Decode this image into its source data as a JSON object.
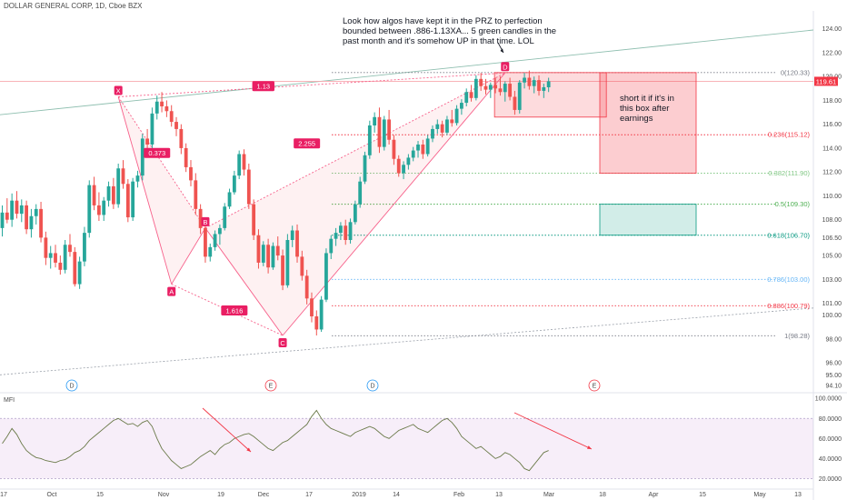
{
  "header": {
    "symbol": "DOLLAR GENERAL CORP, 1D, Cboe BZX"
  },
  "annotations": {
    "top_note": "Look how algos have kept it in the PRZ to perfection\nbounded between .886-1.13XA... 5 green candles in the\npast month and it's somehow UP in that time. LOL",
    "box_note": "short it if it's in\nthis box after\nearnings"
  },
  "price_tag": "119.61",
  "chart_data": {
    "type": "candlestick",
    "title": "DOLLAR GENERAL CORP, 1D, Cboe BZX",
    "ylim": [
      93.5,
      125.5
    ],
    "y_ticks": [
      "124.00",
      "122.00",
      "120.00",
      "118.00",
      "116.00",
      "114.00",
      "112.00",
      "110.00",
      "108.00",
      "106.50",
      "105.00",
      "103.00",
      "101.00",
      "100.00",
      "98.00",
      "96.00",
      "95.00",
      "94.10"
    ],
    "y_tick_values": [
      124,
      122,
      120,
      118,
      116,
      114,
      112,
      110,
      108,
      106.5,
      105,
      103,
      101,
      100,
      98,
      96,
      95,
      94.1
    ],
    "x_labels": [
      "17",
      "Oct",
      "15",
      "Nov",
      "19",
      "Dec",
      "17",
      "2019",
      "14",
      "Feb",
      "13",
      "Mar",
      "18",
      "Apr",
      "15",
      "May",
      "13"
    ],
    "candles": [
      {
        "o": 107.3,
        "h": 109.2,
        "l": 106.6,
        "c": 108.6
      },
      {
        "o": 108.6,
        "h": 109.8,
        "l": 107.7,
        "c": 108.0
      },
      {
        "o": 108.0,
        "h": 110.2,
        "l": 107.4,
        "c": 109.6
      },
      {
        "o": 109.6,
        "h": 110.4,
        "l": 108.1,
        "c": 108.5
      },
      {
        "o": 108.5,
        "h": 109.7,
        "l": 107.8,
        "c": 109.2
      },
      {
        "o": 109.2,
        "h": 109.6,
        "l": 106.8,
        "c": 107.2
      },
      {
        "o": 107.2,
        "h": 108.9,
        "l": 106.5,
        "c": 108.3
      },
      {
        "o": 108.3,
        "h": 109.3,
        "l": 107.6,
        "c": 108.9
      },
      {
        "o": 108.9,
        "h": 109.5,
        "l": 106.1,
        "c": 106.5
      },
      {
        "o": 106.5,
        "h": 107.0,
        "l": 104.2,
        "c": 104.8
      },
      {
        "o": 104.8,
        "h": 105.8,
        "l": 103.9,
        "c": 105.2
      },
      {
        "o": 105.2,
        "h": 105.9,
        "l": 104.0,
        "c": 104.4
      },
      {
        "o": 104.4,
        "h": 105.0,
        "l": 103.4,
        "c": 103.8
      },
      {
        "o": 103.8,
        "h": 106.3,
        "l": 103.5,
        "c": 105.9
      },
      {
        "o": 105.9,
        "h": 106.8,
        "l": 104.9,
        "c": 105.3
      },
      {
        "o": 105.3,
        "h": 105.7,
        "l": 102.4,
        "c": 102.6
      },
      {
        "o": 102.6,
        "h": 104.9,
        "l": 102.2,
        "c": 104.5
      },
      {
        "o": 104.5,
        "h": 107.4,
        "l": 104.1,
        "c": 106.9
      },
      {
        "o": 106.9,
        "h": 111.3,
        "l": 106.5,
        "c": 110.9
      },
      {
        "o": 110.9,
        "h": 111.6,
        "l": 108.8,
        "c": 109.2
      },
      {
        "o": 109.2,
        "h": 110.3,
        "l": 107.9,
        "c": 108.4
      },
      {
        "o": 108.4,
        "h": 109.9,
        "l": 107.9,
        "c": 109.6
      },
      {
        "o": 109.6,
        "h": 111.2,
        "l": 109.1,
        "c": 110.8
      },
      {
        "o": 110.8,
        "h": 111.5,
        "l": 108.9,
        "c": 109.3
      },
      {
        "o": 109.3,
        "h": 112.7,
        "l": 109.0,
        "c": 112.3
      },
      {
        "o": 112.3,
        "h": 113.0,
        "l": 110.6,
        "c": 111.0
      },
      {
        "o": 111.0,
        "h": 111.4,
        "l": 107.8,
        "c": 108.2
      },
      {
        "o": 108.2,
        "h": 111.5,
        "l": 107.9,
        "c": 111.2
      },
      {
        "o": 111.2,
        "h": 112.1,
        "l": 110.7,
        "c": 111.7
      },
      {
        "o": 111.7,
        "h": 115.2,
        "l": 111.3,
        "c": 114.8
      },
      {
        "o": 114.8,
        "h": 115.6,
        "l": 113.9,
        "c": 114.3
      },
      {
        "o": 114.3,
        "h": 117.4,
        "l": 114.0,
        "c": 116.9
      },
      {
        "o": 116.9,
        "h": 118.4,
        "l": 116.4,
        "c": 117.9
      },
      {
        "o": 117.9,
        "h": 118.7,
        "l": 117.0,
        "c": 117.5
      },
      {
        "o": 117.5,
        "h": 118.0,
        "l": 116.6,
        "c": 117.1
      },
      {
        "o": 117.1,
        "h": 117.6,
        "l": 115.8,
        "c": 116.2
      },
      {
        "o": 116.2,
        "h": 116.6,
        "l": 115.0,
        "c": 115.6
      },
      {
        "o": 115.6,
        "h": 116.0,
        "l": 113.5,
        "c": 114.0
      },
      {
        "o": 114.0,
        "h": 114.4,
        "l": 112.0,
        "c": 112.4
      },
      {
        "o": 112.4,
        "h": 113.0,
        "l": 110.8,
        "c": 111.3
      },
      {
        "o": 111.3,
        "h": 111.9,
        "l": 108.4,
        "c": 108.9
      },
      {
        "o": 108.9,
        "h": 109.3,
        "l": 106.8,
        "c": 107.3
      },
      {
        "o": 107.3,
        "h": 107.8,
        "l": 104.4,
        "c": 104.9
      },
      {
        "o": 104.9,
        "h": 106.0,
        "l": 104.5,
        "c": 105.7
      },
      {
        "o": 105.7,
        "h": 107.1,
        "l": 105.4,
        "c": 106.8
      },
      {
        "o": 106.8,
        "h": 107.6,
        "l": 105.9,
        "c": 107.3
      },
      {
        "o": 107.3,
        "h": 109.4,
        "l": 107.1,
        "c": 109.1
      },
      {
        "o": 109.1,
        "h": 110.6,
        "l": 108.9,
        "c": 110.3
      },
      {
        "o": 110.3,
        "h": 112.1,
        "l": 110.1,
        "c": 111.7
      },
      {
        "o": 111.7,
        "h": 113.8,
        "l": 111.4,
        "c": 113.5
      },
      {
        "o": 113.5,
        "h": 113.9,
        "l": 111.7,
        "c": 112.2
      },
      {
        "o": 112.2,
        "h": 112.7,
        "l": 108.9,
        "c": 109.3
      },
      {
        "o": 109.3,
        "h": 109.7,
        "l": 106.3,
        "c": 106.7
      },
      {
        "o": 106.7,
        "h": 107.2,
        "l": 103.9,
        "c": 104.4
      },
      {
        "o": 104.4,
        "h": 106.2,
        "l": 104.1,
        "c": 105.9
      },
      {
        "o": 105.9,
        "h": 106.4,
        "l": 103.5,
        "c": 104.0
      },
      {
        "o": 104.0,
        "h": 106.1,
        "l": 103.8,
        "c": 105.8
      },
      {
        "o": 105.8,
        "h": 106.6,
        "l": 104.6,
        "c": 105.0
      },
      {
        "o": 105.0,
        "h": 105.5,
        "l": 102.1,
        "c": 102.5
      },
      {
        "o": 102.5,
        "h": 106.8,
        "l": 102.3,
        "c": 106.3
      },
      {
        "o": 106.3,
        "h": 107.5,
        "l": 105.7,
        "c": 107.1
      },
      {
        "o": 107.1,
        "h": 107.6,
        "l": 104.4,
        "c": 104.9
      },
      {
        "o": 104.9,
        "h": 105.4,
        "l": 102.9,
        "c": 103.3
      },
      {
        "o": 103.3,
        "h": 103.8,
        "l": 100.9,
        "c": 101.4
      },
      {
        "o": 101.4,
        "h": 101.9,
        "l": 99.4,
        "c": 99.9
      },
      {
        "o": 99.9,
        "h": 100.4,
        "l": 98.3,
        "c": 98.8
      },
      {
        "o": 98.8,
        "h": 101.6,
        "l": 98.6,
        "c": 101.3
      },
      {
        "o": 101.3,
        "h": 105.6,
        "l": 101.1,
        "c": 105.2
      },
      {
        "o": 105.2,
        "h": 106.7,
        "l": 104.7,
        "c": 106.4
      },
      {
        "o": 106.4,
        "h": 107.3,
        "l": 105.8,
        "c": 106.9
      },
      {
        "o": 106.9,
        "h": 107.8,
        "l": 106.3,
        "c": 107.5
      },
      {
        "o": 107.5,
        "h": 108.0,
        "l": 105.9,
        "c": 106.3
      },
      {
        "o": 106.3,
        "h": 108.1,
        "l": 106.0,
        "c": 107.8
      },
      {
        "o": 107.8,
        "h": 109.6,
        "l": 107.6,
        "c": 109.3
      },
      {
        "o": 109.3,
        "h": 111.6,
        "l": 109.0,
        "c": 111.2
      },
      {
        "o": 111.2,
        "h": 113.7,
        "l": 111.0,
        "c": 113.4
      },
      {
        "o": 113.4,
        "h": 116.3,
        "l": 113.1,
        "c": 115.9
      },
      {
        "o": 115.9,
        "h": 117.0,
        "l": 115.3,
        "c": 116.6
      },
      {
        "o": 116.6,
        "h": 117.4,
        "l": 113.6,
        "c": 114.1
      },
      {
        "o": 114.1,
        "h": 116.7,
        "l": 113.8,
        "c": 116.4
      },
      {
        "o": 116.4,
        "h": 117.2,
        "l": 114.3,
        "c": 114.7
      },
      {
        "o": 114.7,
        "h": 115.1,
        "l": 112.6,
        "c": 113.1
      },
      {
        "o": 113.1,
        "h": 113.4,
        "l": 111.6,
        "c": 111.9
      },
      {
        "o": 111.9,
        "h": 112.9,
        "l": 111.4,
        "c": 112.6
      },
      {
        "o": 112.6,
        "h": 113.5,
        "l": 112.2,
        "c": 113.2
      },
      {
        "o": 113.2,
        "h": 114.1,
        "l": 112.9,
        "c": 113.8
      },
      {
        "o": 113.8,
        "h": 114.6,
        "l": 113.2,
        "c": 114.3
      },
      {
        "o": 114.3,
        "h": 114.7,
        "l": 113.1,
        "c": 113.5
      },
      {
        "o": 113.5,
        "h": 115.1,
        "l": 113.3,
        "c": 114.8
      },
      {
        "o": 114.8,
        "h": 115.9,
        "l": 114.5,
        "c": 115.6
      },
      {
        "o": 115.6,
        "h": 116.4,
        "l": 115.2,
        "c": 116.0
      },
      {
        "o": 116.0,
        "h": 116.3,
        "l": 114.9,
        "c": 115.3
      },
      {
        "o": 115.3,
        "h": 116.7,
        "l": 115.1,
        "c": 116.4
      },
      {
        "o": 116.4,
        "h": 117.2,
        "l": 115.8,
        "c": 116.1
      },
      {
        "o": 116.1,
        "h": 117.6,
        "l": 115.9,
        "c": 117.3
      },
      {
        "o": 117.3,
        "h": 118.1,
        "l": 116.8,
        "c": 117.8
      },
      {
        "o": 117.8,
        "h": 119.0,
        "l": 117.5,
        "c": 118.7
      },
      {
        "o": 118.7,
        "h": 119.3,
        "l": 117.9,
        "c": 118.2
      },
      {
        "o": 118.2,
        "h": 120.1,
        "l": 118.0,
        "c": 119.8
      },
      {
        "o": 119.8,
        "h": 120.3,
        "l": 118.8,
        "c": 119.2
      },
      {
        "o": 119.2,
        "h": 119.8,
        "l": 118.5,
        "c": 118.9
      },
      {
        "o": 118.9,
        "h": 119.5,
        "l": 118.2,
        "c": 119.3
      },
      {
        "o": 119.3,
        "h": 119.9,
        "l": 118.6,
        "c": 119.0
      },
      {
        "o": 119.0,
        "h": 120.0,
        "l": 118.4,
        "c": 118.7
      },
      {
        "o": 118.7,
        "h": 119.6,
        "l": 117.9,
        "c": 119.4
      },
      {
        "o": 119.4,
        "h": 119.9,
        "l": 118.0,
        "c": 118.3
      },
      {
        "o": 118.3,
        "h": 118.8,
        "l": 116.8,
        "c": 117.2
      },
      {
        "o": 117.2,
        "h": 119.7,
        "l": 116.9,
        "c": 119.5
      },
      {
        "o": 119.5,
        "h": 120.3,
        "l": 119.0,
        "c": 119.9
      },
      {
        "o": 119.9,
        "h": 120.5,
        "l": 118.9,
        "c": 119.2
      },
      {
        "o": 119.2,
        "h": 120.0,
        "l": 118.6,
        "c": 119.7
      },
      {
        "o": 119.7,
        "h": 120.1,
        "l": 118.4,
        "c": 118.8
      },
      {
        "o": 118.8,
        "h": 119.4,
        "l": 118.2,
        "c": 119.1
      },
      {
        "o": 119.1,
        "h": 119.9,
        "l": 118.7,
        "c": 119.6
      }
    ],
    "pattern": {
      "points": [
        {
          "label": "X",
          "i": 24,
          "y": 118.3
        },
        {
          "label": "A",
          "i": 35,
          "y": 102.6
        },
        {
          "label": "B",
          "i": 42,
          "y": 107.3
        },
        {
          "label": "C",
          "i": 58,
          "y": 98.3
        },
        {
          "label": "D",
          "i": 104,
          "y": 120.3
        }
      ],
      "ratios": [
        {
          "text": "0.373",
          "i": 32,
          "y": 113.6
        },
        {
          "text": "1.616",
          "i": 48,
          "y": 100.4
        },
        {
          "text": "2.255",
          "i": 63,
          "y": 114.4
        },
        {
          "text": "1.13",
          "i": 54,
          "y": 119.2
        }
      ]
    },
    "fib_levels": [
      {
        "label": "0(120.33)",
        "value": 120.33,
        "color": "#787b86"
      },
      {
        "label": "0.236(115.12)",
        "value": 115.12,
        "color": "#f23645"
      },
      {
        "label": "0.382(111.90)",
        "value": 111.9,
        "color": "#81c784"
      },
      {
        "label": "0.5(109.30)",
        "value": 109.3,
        "color": "#4caf50"
      },
      {
        "label": "0.618(106.70)",
        "value": 106.7,
        "color": "#089981"
      },
      {
        "label": "0.786(103.00)",
        "value": 103.0,
        "color": "#64b5f6"
      },
      {
        "label": "0.886(100.79)",
        "value": 100.79,
        "color": "#f23645"
      },
      {
        "label": "1(98.28)",
        "value": 98.28,
        "color": "#787b86"
      }
    ],
    "event_markers": [
      "D",
      "E",
      "D",
      "E"
    ],
    "mfi": {
      "label": "MFI",
      "ylim": [
        15,
        102
      ],
      "y_ticks": [
        "100.0000",
        "80.0000",
        "60.0000",
        "40.0000",
        "20.0000"
      ],
      "y_tick_values": [
        100,
        80,
        60,
        40,
        20
      ],
      "band": [
        20,
        80
      ],
      "values": [
        55,
        62,
        70,
        64,
        55,
        48,
        44,
        41,
        40,
        38,
        37,
        36,
        38,
        39,
        42,
        46,
        48,
        52,
        58,
        62,
        66,
        70,
        74,
        78,
        80,
        77,
        74,
        75,
        72,
        76,
        78,
        72,
        60,
        50,
        44,
        38,
        34,
        30,
        32,
        34,
        38,
        42,
        45,
        48,
        44,
        50,
        54,
        56,
        60,
        62,
        64,
        65,
        62,
        58,
        54,
        50,
        48,
        52,
        56,
        58,
        62,
        66,
        70,
        74,
        82,
        88,
        80,
        74,
        70,
        68,
        66,
        64,
        62,
        66,
        68,
        70,
        72,
        70,
        66,
        62,
        60,
        64,
        68,
        70,
        72,
        74,
        70,
        68,
        66,
        70,
        74,
        78,
        80,
        76,
        70,
        62,
        58,
        54,
        50,
        52,
        48,
        44,
        40,
        42,
        46,
        44,
        40,
        36,
        30,
        28,
        34,
        40,
        46,
        48
      ]
    }
  }
}
